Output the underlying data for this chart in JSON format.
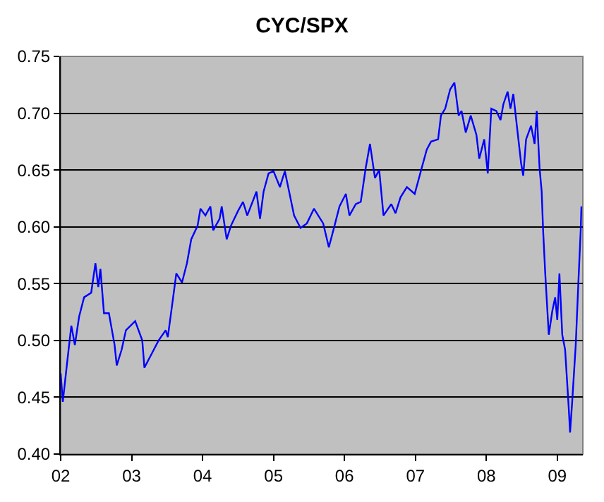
{
  "chart_data": {
    "type": "line",
    "title": "CYC/SPX",
    "x": [
      2002.0,
      2002.03,
      2002.09,
      2002.15,
      2002.2,
      2002.26,
      2002.33,
      2002.43,
      2002.49,
      2002.53,
      2002.56,
      2002.61,
      2002.68,
      2002.76,
      2002.79,
      2002.86,
      2002.92,
      2003.05,
      2003.15,
      2003.18,
      2003.28,
      2003.38,
      2003.48,
      2003.51,
      2003.56,
      2003.63,
      2003.71,
      2003.78,
      2003.84,
      2003.93,
      2003.97,
      2004.04,
      2004.11,
      2004.15,
      2004.24,
      2004.27,
      2004.34,
      2004.4,
      2004.5,
      2004.57,
      2004.63,
      2004.76,
      2004.81,
      2004.86,
      2004.93,
      2005.0,
      2005.09,
      2005.16,
      2005.22,
      2005.29,
      2005.38,
      2005.47,
      2005.57,
      2005.7,
      2005.78,
      2005.86,
      2005.93,
      2006.02,
      2006.07,
      2006.16,
      2006.23,
      2006.3,
      2006.36,
      2006.43,
      2006.49,
      2006.55,
      2006.66,
      2006.72,
      2006.79,
      2006.88,
      2006.99,
      2007.09,
      2007.16,
      2007.22,
      2007.32,
      2007.36,
      2007.42,
      2007.49,
      2007.55,
      2007.61,
      2007.65,
      2007.71,
      2007.78,
      2007.86,
      2007.9,
      2007.97,
      2008.02,
      2008.07,
      2008.14,
      2008.2,
      2008.24,
      2008.3,
      2008.34,
      2008.38,
      2008.43,
      2008.49,
      2008.52,
      2008.56,
      2008.63,
      2008.68,
      2008.71,
      2008.75,
      2008.78,
      2008.8,
      2008.83,
      2008.88,
      2008.93,
      2008.97,
      2009.0,
      2009.03,
      2009.07,
      2009.11,
      2009.16,
      2009.18,
      2009.21,
      2009.26,
      2009.3,
      2009.33,
      2009.34
    ],
    "series": [
      {
        "color": "#0000ff",
        "values": [
          0.471,
          0.446,
          0.48,
          0.513,
          0.496,
          0.521,
          0.538,
          0.542,
          0.568,
          0.547,
          0.563,
          0.524,
          0.524,
          0.496,
          0.478,
          0.492,
          0.509,
          0.517,
          0.5,
          0.476,
          0.488,
          0.5,
          0.509,
          0.503,
          0.526,
          0.559,
          0.551,
          0.568,
          0.589,
          0.601,
          0.616,
          0.61,
          0.618,
          0.597,
          0.607,
          0.618,
          0.589,
          0.601,
          0.614,
          0.622,
          0.61,
          0.631,
          0.607,
          0.631,
          0.647,
          0.649,
          0.635,
          0.649,
          0.631,
          0.61,
          0.599,
          0.603,
          0.616,
          0.603,
          0.582,
          0.601,
          0.618,
          0.629,
          0.61,
          0.62,
          0.622,
          0.652,
          0.673,
          0.643,
          0.65,
          0.61,
          0.62,
          0.612,
          0.626,
          0.635,
          0.629,
          0.652,
          0.668,
          0.675,
          0.677,
          0.698,
          0.704,
          0.721,
          0.727,
          0.698,
          0.702,
          0.683,
          0.698,
          0.681,
          0.66,
          0.677,
          0.647,
          0.704,
          0.702,
          0.694,
          0.708,
          0.719,
          0.704,
          0.717,
          0.689,
          0.656,
          0.645,
          0.677,
          0.689,
          0.673,
          0.702,
          0.652,
          0.631,
          0.597,
          0.559,
          0.505,
          0.526,
          0.538,
          0.518,
          0.559,
          0.505,
          0.492,
          0.442,
          0.419,
          0.446,
          0.496,
          0.555,
          0.597,
          0.618
        ]
      }
    ],
    "xlim": [
      2002,
      2009.36
    ],
    "xticks": [
      {
        "value": 2002,
        "label": "02"
      },
      {
        "value": 2003,
        "label": "03"
      },
      {
        "value": 2004,
        "label": "04"
      },
      {
        "value": 2005,
        "label": "05"
      },
      {
        "value": 2006,
        "label": "06"
      },
      {
        "value": 2007,
        "label": "07"
      },
      {
        "value": 2008,
        "label": "08"
      },
      {
        "value": 2009,
        "label": "09"
      }
    ],
    "ylim": [
      0.4,
      0.75
    ],
    "yticks": [
      {
        "value": 0.4,
        "label": "0.40"
      },
      {
        "value": 0.45,
        "label": "0.45"
      },
      {
        "value": 0.5,
        "label": "0.50"
      },
      {
        "value": 0.55,
        "label": "0.55"
      },
      {
        "value": 0.6,
        "label": "0.60"
      },
      {
        "value": 0.65,
        "label": "0.65"
      },
      {
        "value": 0.7,
        "label": "0.70"
      },
      {
        "value": 0.75,
        "label": "0.75"
      }
    ],
    "grid": "y",
    "marker": "none",
    "line_style": "solid"
  }
}
